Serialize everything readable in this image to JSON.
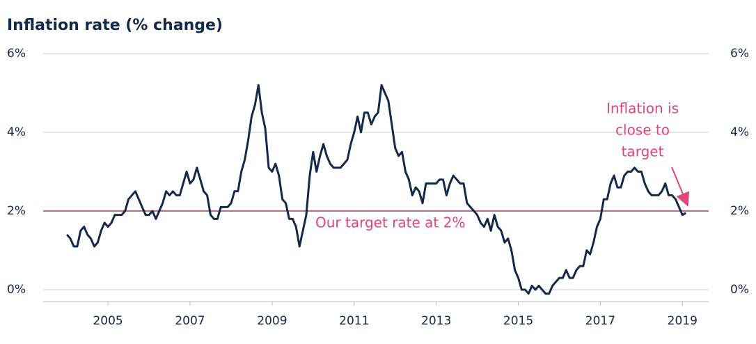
{
  "chart_data": {
    "type": "line",
    "title": "Inflation rate (% change)",
    "x": [
      2004.0,
      2004.083,
      2004.167,
      2004.25,
      2004.333,
      2004.417,
      2004.5,
      2004.583,
      2004.667,
      2004.75,
      2004.833,
      2004.917,
      2005.0,
      2005.083,
      2005.167,
      2005.25,
      2005.333,
      2005.417,
      2005.5,
      2005.583,
      2005.667,
      2005.75,
      2005.833,
      2005.917,
      2006.0,
      2006.083,
      2006.167,
      2006.25,
      2006.333,
      2006.417,
      2006.5,
      2006.583,
      2006.667,
      2006.75,
      2006.833,
      2006.917,
      2007.0,
      2007.083,
      2007.167,
      2007.25,
      2007.333,
      2007.417,
      2007.5,
      2007.583,
      2007.667,
      2007.75,
      2007.833,
      2007.917,
      2008.0,
      2008.083,
      2008.167,
      2008.25,
      2008.333,
      2008.417,
      2008.5,
      2008.583,
      2008.667,
      2008.75,
      2008.833,
      2008.917,
      2009.0,
      2009.083,
      2009.167,
      2009.25,
      2009.333,
      2009.417,
      2009.5,
      2009.583,
      2009.667,
      2009.75,
      2009.833,
      2009.917,
      2010.0,
      2010.083,
      2010.167,
      2010.25,
      2010.333,
      2010.417,
      2010.5,
      2010.583,
      2010.667,
      2010.75,
      2010.833,
      2010.917,
      2011.0,
      2011.083,
      2011.167,
      2011.25,
      2011.333,
      2011.417,
      2011.5,
      2011.583,
      2011.667,
      2011.75,
      2011.833,
      2011.917,
      2012.0,
      2012.083,
      2012.167,
      2012.25,
      2012.333,
      2012.417,
      2012.5,
      2012.583,
      2012.667,
      2012.75,
      2012.833,
      2012.917,
      2013.0,
      2013.083,
      2013.167,
      2013.25,
      2013.333,
      2013.417,
      2013.5,
      2013.583,
      2013.667,
      2013.75,
      2013.833,
      2013.917,
      2014.0,
      2014.083,
      2014.167,
      2014.25,
      2014.333,
      2014.417,
      2014.5,
      2014.583,
      2014.667,
      2014.75,
      2014.833,
      2014.917,
      2015.0,
      2015.083,
      2015.167,
      2015.25,
      2015.333,
      2015.417,
      2015.5,
      2015.583,
      2015.667,
      2015.75,
      2015.833,
      2015.917,
      2016.0,
      2016.083,
      2016.167,
      2016.25,
      2016.333,
      2016.417,
      2016.5,
      2016.583,
      2016.667,
      2016.75,
      2016.833,
      2016.917,
      2017.0,
      2017.083,
      2017.167,
      2017.25,
      2017.333,
      2017.417,
      2017.5,
      2017.583,
      2017.667,
      2017.75,
      2017.833,
      2017.917,
      2018.0,
      2018.083,
      2018.167,
      2018.25,
      2018.333,
      2018.417,
      2018.5,
      2018.583,
      2018.667,
      2018.75,
      2018.833,
      2018.917,
      2019.0,
      2019.083
    ],
    "series": [
      {
        "color": "#13294b",
        "values": [
          1.4,
          1.3,
          1.1,
          1.1,
          1.5,
          1.6,
          1.4,
          1.3,
          1.1,
          1.2,
          1.5,
          1.7,
          1.6,
          1.7,
          1.9,
          1.9,
          1.9,
          2.0,
          2.3,
          2.4,
          2.5,
          2.3,
          2.1,
          1.9,
          1.9,
          2.0,
          1.8,
          2.0,
          2.2,
          2.5,
          2.4,
          2.5,
          2.4,
          2.4,
          2.7,
          3.0,
          2.7,
          2.8,
          3.1,
          2.8,
          2.5,
          2.4,
          1.9,
          1.8,
          1.8,
          2.1,
          2.1,
          2.1,
          2.2,
          2.5,
          2.5,
          3.0,
          3.3,
          3.8,
          4.4,
          4.7,
          5.2,
          4.5,
          4.1,
          3.1,
          3.0,
          3.2,
          2.9,
          2.3,
          2.2,
          1.8,
          1.8,
          1.6,
          1.1,
          1.5,
          1.9,
          2.9,
          3.5,
          3.0,
          3.4,
          3.7,
          3.4,
          3.2,
          3.1,
          3.1,
          3.1,
          3.2,
          3.3,
          3.7,
          4.0,
          4.4,
          4.0,
          4.5,
          4.5,
          4.2,
          4.4,
          4.5,
          5.2,
          5.0,
          4.8,
          4.2,
          3.6,
          3.4,
          3.5,
          3.0,
          2.8,
          2.4,
          2.6,
          2.5,
          2.2,
          2.7,
          2.7,
          2.7,
          2.7,
          2.8,
          2.8,
          2.4,
          2.7,
          2.9,
          2.8,
          2.7,
          2.7,
          2.2,
          2.1,
          2.0,
          1.9,
          1.7,
          1.6,
          1.8,
          1.5,
          1.9,
          1.6,
          1.5,
          1.2,
          1.3,
          1.0,
          0.5,
          0.3,
          0.0,
          0.0,
          -0.1,
          0.1,
          0.0,
          0.1,
          0.0,
          -0.1,
          -0.1,
          0.1,
          0.2,
          0.3,
          0.3,
          0.5,
          0.3,
          0.3,
          0.5,
          0.6,
          0.6,
          1.0,
          0.9,
          1.2,
          1.6,
          1.8,
          2.3,
          2.3,
          2.7,
          2.9,
          2.6,
          2.6,
          2.9,
          3.0,
          3.0,
          3.1,
          3.0,
          3.0,
          2.7,
          2.5,
          2.4,
          2.4,
          2.4,
          2.5,
          2.7,
          2.4,
          2.4,
          2.3,
          2.1,
          1.9,
          1.95
        ]
      }
    ],
    "xlim": [
      2003.42,
      2019.64
    ],
    "xticks": [
      2005,
      2007,
      2009,
      2011,
      2013,
      2015,
      2017,
      2019
    ],
    "ylim": [
      -0.3,
      6
    ],
    "yticks": [
      {
        "value": 0,
        "label": "0%"
      },
      {
        "value": 2,
        "label": "2%"
      },
      {
        "value": 4,
        "label": "4%"
      },
      {
        "value": 6,
        "label": "6%"
      }
    ],
    "grid": true,
    "target": {
      "value": 2,
      "label": "Our target rate at 2%",
      "color": "#8b1a4a"
    },
    "annotation": [
      "Inflation is",
      "close to",
      "target"
    ]
  }
}
